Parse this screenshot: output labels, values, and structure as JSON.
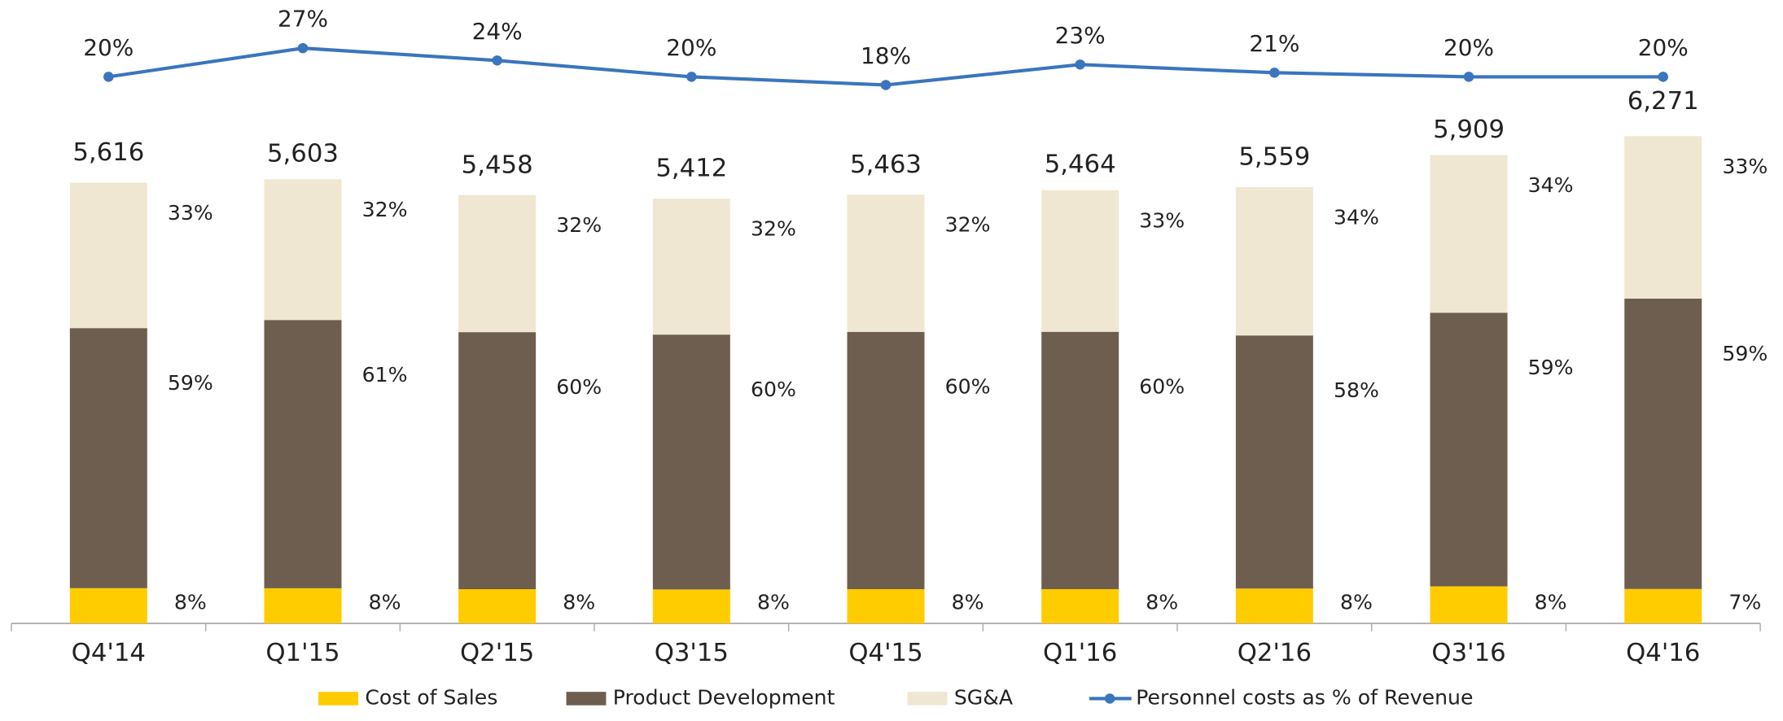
{
  "chart_data": {
    "type": "bar",
    "stacked": true,
    "categories": [
      "Q4'14",
      "Q1'15",
      "Q2'15",
      "Q3'15",
      "Q4'15",
      "Q1'16",
      "Q2'16",
      "Q3'16",
      "Q4'16"
    ],
    "totals": {
      "values": [
        5616,
        5603,
        5458,
        5412,
        5463,
        5464,
        5559,
        5909,
        6271
      ],
      "value_labels": [
        "5,616",
        "5,603",
        "5,458",
        "5,412",
        "5,463",
        "5,464",
        "5,559",
        "5,909",
        "6,271"
      ]
    },
    "series": [
      {
        "name": "Cost of Sales",
        "color": "#FFCC00",
        "values": [
          8,
          8,
          8,
          8,
          8,
          8,
          8,
          8,
          7
        ],
        "value_labels": [
          "8%",
          "8%",
          "8%",
          "8%",
          "8%",
          "8%",
          "8%",
          "8%",
          "7%"
        ]
      },
      {
        "name": "Product Development",
        "color": "#6E5E4F",
        "values": [
          59,
          61,
          60,
          60,
          60,
          60,
          58,
          59,
          59
        ],
        "value_labels": [
          "59%",
          "61%",
          "60%",
          "60%",
          "60%",
          "60%",
          "58%",
          "59%",
          "59%"
        ]
      },
      {
        "name": "SG&A",
        "color": "#EFE7D2",
        "values": [
          33,
          32,
          32,
          32,
          32,
          33,
          34,
          34,
          33
        ],
        "value_labels": [
          "33%",
          "32%",
          "32%",
          "32%",
          "32%",
          "33%",
          "34%",
          "34%",
          "33%"
        ]
      },
      {
        "name": "Personnel costs as % of Revenue",
        "type": "line",
        "axis": "y2",
        "color": "#3A75BD",
        "values": [
          20,
          27,
          24,
          20,
          18,
          23,
          21,
          20,
          20
        ],
        "value_labels": [
          "20%",
          "27%",
          "24%",
          "20%",
          "18%",
          "23%",
          "21%",
          "20%",
          "20%"
        ]
      }
    ],
    "ylim": [
      0,
      7000
    ],
    "y2lim": [
      10,
      30
    ]
  }
}
